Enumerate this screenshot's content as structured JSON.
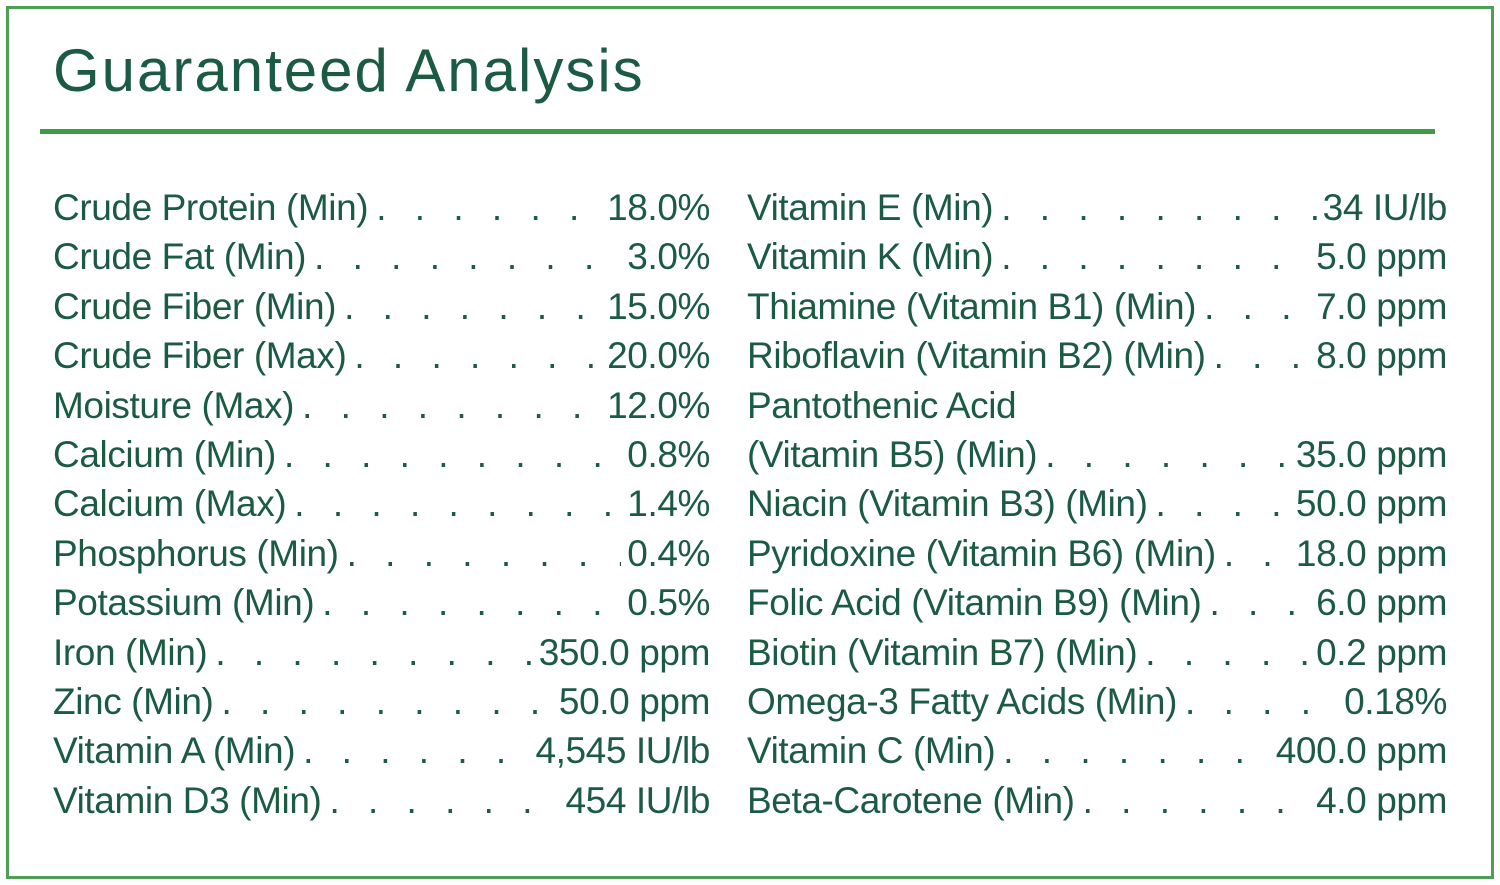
{
  "panel": {
    "title": "Guaranteed Analysis",
    "colors": {
      "text_green": "#1b5a43",
      "border_green": "#4f9e55",
      "divider_green": "#3f9b45",
      "background": "#ffffff"
    },
    "columns": [
      {
        "rows": [
          {
            "label": "Crude Protein (Min)",
            "value": "18.0%",
            "dots": true
          },
          {
            "label": "Crude Fat (Min)",
            "value": "3.0%",
            "dots": true
          },
          {
            "label": "Crude Fiber (Min)",
            "value": "15.0%",
            "dots": true
          },
          {
            "label": "Crude Fiber (Max)",
            "value": "20.0%",
            "dots": true
          },
          {
            "label": "Moisture (Max)",
            "value": "12.0%",
            "dots": true
          },
          {
            "label": "Calcium (Min)",
            "value": "0.8%",
            "dots": true
          },
          {
            "label": "Calcium (Max)",
            "value": "1.4%",
            "dots": true
          },
          {
            "label": "Phosphorus (Min)",
            "value": "0.4%",
            "dots": true
          },
          {
            "label": "Potassium (Min)",
            "value": "0.5%",
            "dots": true
          },
          {
            "label": "Iron (Min)",
            "value": "350.0 ppm",
            "dots": true
          },
          {
            "label": "Zinc (Min)",
            "value": "50.0 ppm",
            "dots": true
          },
          {
            "label": "Vitamin A (Min)",
            "value": "4,545 IU/lb",
            "dots": true
          },
          {
            "label": "Vitamin D3 (Min)",
            "value": "454 IU/lb",
            "dots": true
          }
        ]
      },
      {
        "rows": [
          {
            "label": "Vitamin E (Min)",
            "value": "34 IU/lb",
            "dots": true
          },
          {
            "label": "Vitamin K (Min)",
            "value": "5.0 ppm",
            "dots": true
          },
          {
            "label": "Thiamine (Vitamin B1) (Min)",
            "value": "7.0 ppm",
            "dots": true
          },
          {
            "label": "Riboflavin (Vitamin B2) (Min)",
            "value": "8.0 ppm",
            "dots": true
          },
          {
            "label": "Pantothenic Acid",
            "value": "",
            "dots": false
          },
          {
            "label": "(Vitamin B5) (Min)",
            "value": "35.0 ppm",
            "dots": true
          },
          {
            "label": "Niacin (Vitamin B3) (Min)",
            "value": "50.0 ppm",
            "dots": true
          },
          {
            "label": "Pyridoxine (Vitamin B6) (Min)",
            "value": "18.0 ppm",
            "dots": true
          },
          {
            "label": "Folic Acid (Vitamin B9) (Min)",
            "value": "6.0 ppm",
            "dots": true
          },
          {
            "label": "Biotin (Vitamin B7) (Min)",
            "value": "0.2 ppm",
            "dots": true
          },
          {
            "label": "Omega-3 Fatty Acids (Min)",
            "value": "0.18%",
            "dots": true
          },
          {
            "label": "Vitamin C (Min)",
            "value": "400.0 ppm",
            "dots": true
          },
          {
            "label": "Beta-Carotene (Min)",
            "value": "4.0 ppm",
            "dots": true
          }
        ]
      }
    ]
  }
}
